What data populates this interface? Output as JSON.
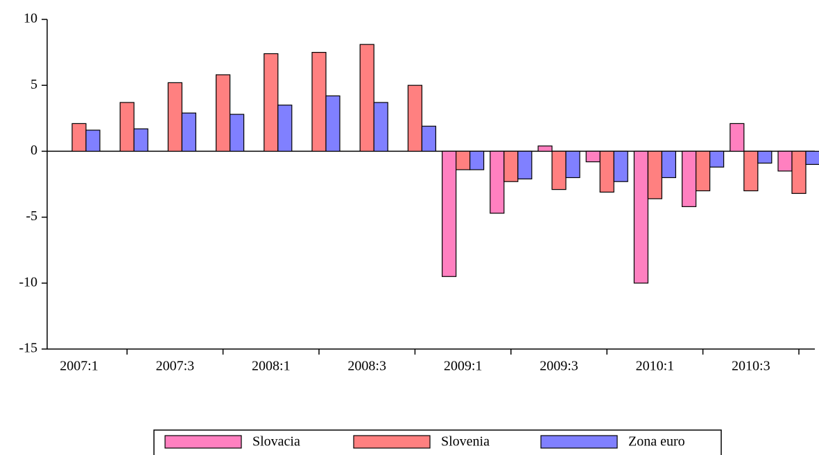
{
  "chart_data": {
    "type": "bar",
    "categories": [
      "2007:1",
      null,
      "2007:3",
      null,
      "2008:1",
      null,
      "2008:3",
      null,
      "2009:1",
      null,
      "2009:3",
      null,
      "2010:1",
      null,
      "2010:3",
      null
    ],
    "series": [
      {
        "name": "Slovacia",
        "color": "#ff80c0",
        "values": [
          null,
          null,
          null,
          null,
          null,
          null,
          null,
          null,
          -9.5,
          -4.7,
          0.4,
          -0.8,
          -10.0,
          -4.2,
          2.1,
          -1.5
        ]
      },
      {
        "name": "Slovenia",
        "color": "#ff8080",
        "values": [
          2.1,
          3.7,
          5.2,
          5.8,
          7.4,
          7.5,
          8.1,
          5.0,
          -1.4,
          -2.3,
          -2.9,
          -3.1,
          -3.6,
          -3.0,
          -3.0,
          -3.2
        ]
      },
      {
        "name": "Zona euro",
        "color": "#8080ff",
        "values": [
          1.6,
          1.7,
          2.9,
          2.8,
          3.5,
          4.2,
          3.7,
          1.9,
          -1.4,
          -2.1,
          -2.0,
          -2.3,
          -2.0,
          -1.2,
          -0.9,
          -1.0
        ]
      }
    ],
    "ylim": [
      -15,
      10
    ],
    "yticks": [
      -15,
      -10,
      -5,
      0,
      5,
      10
    ],
    "grid": false,
    "legend": "bottom"
  }
}
